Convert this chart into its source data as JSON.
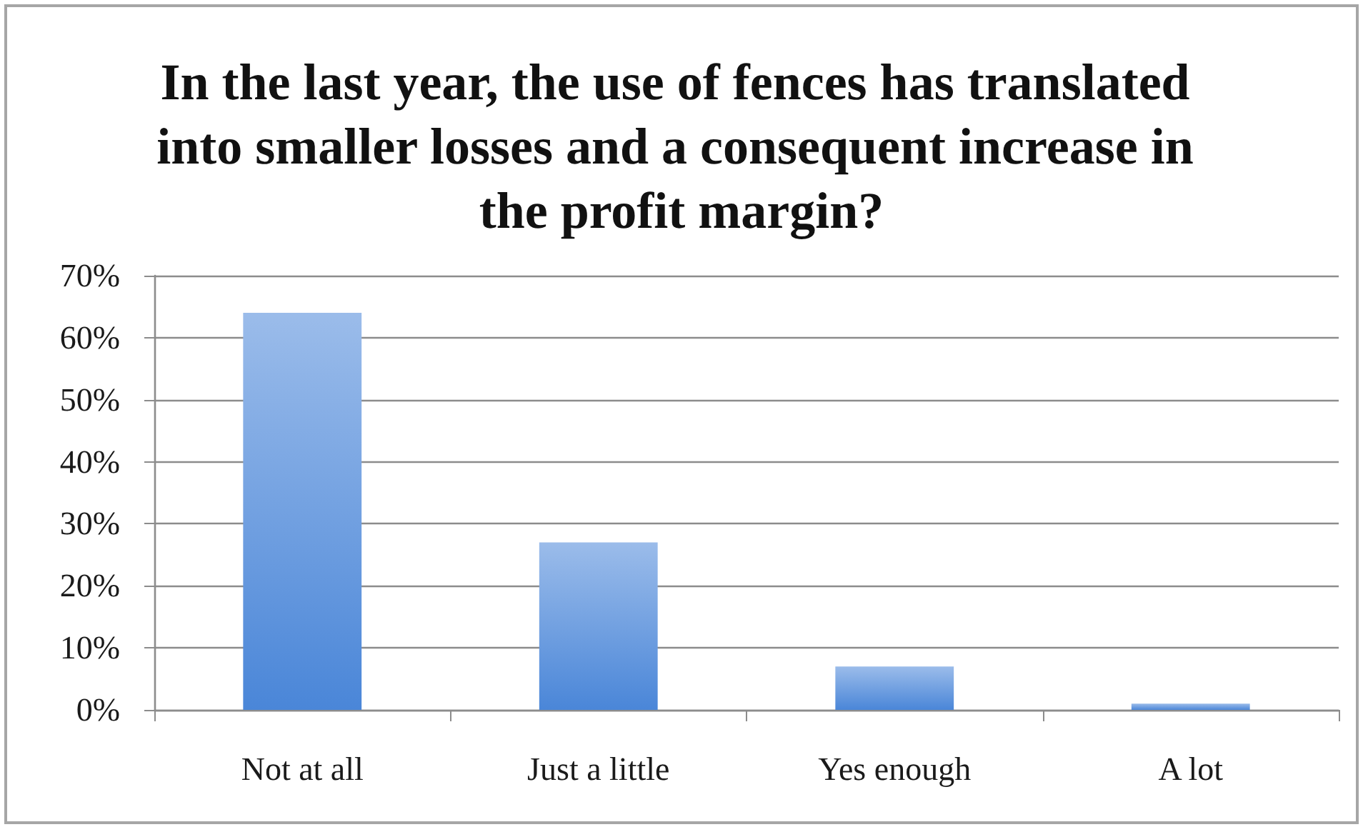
{
  "chart_data": {
    "type": "bar",
    "title": "In the last year, the use of fences has translated into smaller losses and a consequent increase in the profit margin?",
    "categories": [
      "Not at all",
      "Just a little",
      "Yes enough",
      "A lot"
    ],
    "values": [
      64,
      27,
      7,
      1
    ],
    "color": "#4a86d8",
    "ylim": [
      0,
      70
    ],
    "yticks": [
      {
        "value": 0,
        "label": "0%"
      },
      {
        "value": 10,
        "label": "10%"
      },
      {
        "value": 20,
        "label": "20%"
      },
      {
        "value": 30,
        "label": "30%"
      },
      {
        "value": 40,
        "label": "40%"
      },
      {
        "value": 50,
        "label": "50%"
      },
      {
        "value": 60,
        "label": "60%"
      },
      {
        "value": 70,
        "label": "70%"
      }
    ],
    "grid": "y"
  }
}
